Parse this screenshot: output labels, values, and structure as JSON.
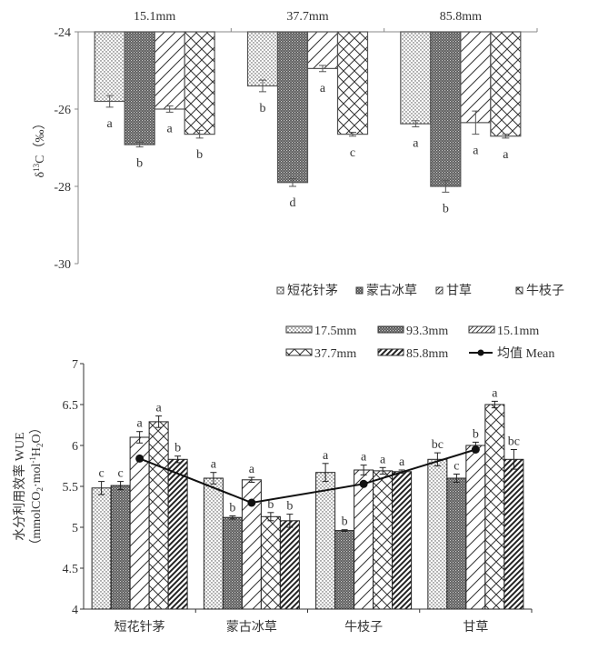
{
  "chart_data": [
    {
      "type": "bar",
      "title": "",
      "orientation": "downward-from-top",
      "ylabel": "δ13C（‰）",
      "ylabel_parts": {
        "prefix": "δ",
        "sup": "13",
        "suffix": "C（‰）"
      },
      "xlabel": "",
      "ylim": [
        -30,
        -24
      ],
      "yticks": [
        -24,
        -26,
        -28,
        -30
      ],
      "categories": [
        "15.1mm",
        "37.7mm",
        "85.8mm"
      ],
      "category_position": "top",
      "legend_position": "bottom-right",
      "series": [
        {
          "name": "短花针茅",
          "pattern": "dots",
          "values": [
            -25.8,
            -25.4,
            -26.38
          ],
          "errors": [
            0.15,
            0.15,
            0.08
          ],
          "letters": [
            "a",
            "b",
            "a"
          ]
        },
        {
          "name": "蒙古冰草",
          "pattern": "dense",
          "values": [
            -26.92,
            -27.9,
            -28.0
          ],
          "errors": [
            0.06,
            0.1,
            0.15
          ],
          "letters": [
            "b",
            "d",
            "b"
          ]
        },
        {
          "name": "甘草",
          "pattern": "diag",
          "values": [
            -26.0,
            -24.95,
            -26.35
          ],
          "errors": [
            0.08,
            0.08,
            0.3
          ],
          "letters": [
            "a",
            "a",
            "a"
          ]
        },
        {
          "name": "牛枝子",
          "pattern": "cross",
          "values": [
            -26.65,
            -26.65,
            -26.7
          ],
          "errors": [
            0.1,
            0.05,
            0.05
          ],
          "letters": [
            "b",
            "c",
            "a"
          ]
        }
      ]
    },
    {
      "type": "bar",
      "title": "",
      "ylabel": "水分利用效率 WUE",
      "ylabel_line2": {
        "a": "（mmolCO",
        "sub1": "2",
        "b": "·mol",
        "sup": "-1",
        "c": "H",
        "sub2": "2",
        "d": "O）"
      },
      "xlabel": "",
      "ylim": [
        4,
        7
      ],
      "yticks": [
        "4",
        "4.5",
        "5",
        "5.5",
        "6",
        "6.5",
        "7"
      ],
      "categories": [
        "短花针茅",
        "蒙古冰草",
        "牛枝子",
        "甘草"
      ],
      "legend_position": "top-right",
      "series": [
        {
          "name": "17.5mm",
          "pattern": "dots",
          "values": [
            5.48,
            5.6,
            5.67,
            5.83
          ],
          "errors": [
            0.08,
            0.07,
            0.11,
            0.08
          ],
          "letters": [
            "c",
            "a",
            "a",
            "bc"
          ]
        },
        {
          "name": "93.3mm",
          "pattern": "dense",
          "values": [
            5.51,
            5.12,
            4.96,
            5.6
          ],
          "errors": [
            0.05,
            0.02,
            0.01,
            0.05
          ],
          "letters": [
            "c",
            "b",
            "b",
            "c"
          ]
        },
        {
          "name": "15.1mm",
          "pattern": "diag",
          "values": [
            6.1,
            5.58,
            5.7,
            6.0
          ],
          "errors": [
            0.07,
            0.03,
            0.06,
            0.04
          ],
          "letters": [
            "a",
            "a",
            "a",
            "b"
          ]
        },
        {
          "name": "37.7mm",
          "pattern": "cross",
          "values": [
            6.29,
            5.13,
            5.69,
            6.5
          ],
          "errors": [
            0.07,
            0.05,
            0.04,
            0.04
          ],
          "letters": [
            "a",
            "b",
            "a",
            "a"
          ]
        },
        {
          "name": "85.8mm",
          "pattern": "bolddiag",
          "values": [
            5.83,
            5.08,
            5.68,
            5.83
          ],
          "errors": [
            0.04,
            0.08,
            0.02,
            0.12
          ],
          "letters": [
            "b",
            "b",
            "a",
            "bc"
          ]
        }
      ],
      "line_series": {
        "name": "均值 Mean",
        "values": [
          5.84,
          5.3,
          5.53,
          5.95
        ]
      }
    }
  ]
}
